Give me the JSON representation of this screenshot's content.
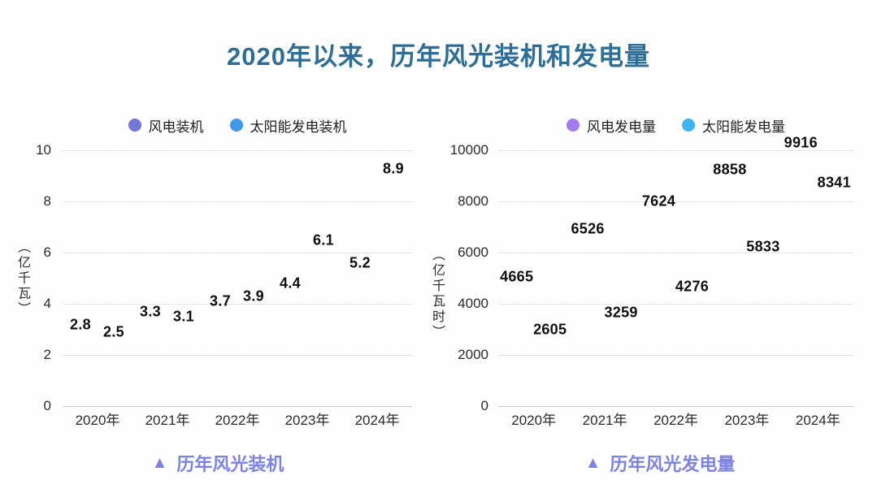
{
  "slide_title": "2020年以来，历年风光装机和发电量",
  "colors": {
    "title": "#2c6e96",
    "caption": "#7c83e2",
    "gridline": "#e4e4e4",
    "baseline": "#c9c9c9",
    "axis_text": "#2b2b2b",
    "data_label": "#0f0f0f"
  },
  "chart_data": [
    {
      "type": "scatter",
      "title": "历年风光装机",
      "caption_glyph": "▲",
      "unit_label": "（亿千瓦）",
      "categories": [
        "2020年",
        "2021年",
        "2022年",
        "2023年",
        "2024年"
      ],
      "series": [
        {
          "name": "风电装机",
          "color": "#7477d6",
          "values": [
            2.8,
            3.3,
            3.7,
            4.4,
            5.2
          ]
        },
        {
          "name": "太阳能发电装机",
          "color": "#4197e9",
          "values": [
            2.5,
            3.1,
            3.9,
            6.1,
            8.9
          ]
        }
      ],
      "y_ticks": [
        "0",
        "2",
        "4",
        "6",
        "8",
        "10"
      ],
      "ylim": [
        0,
        10
      ],
      "grid": true,
      "legend_position": "top",
      "labels_only": true
    },
    {
      "type": "scatter",
      "title": "历年风光发电量",
      "caption_glyph": "▲",
      "unit_label": "（亿千瓦时）",
      "categories": [
        "2020年",
        "2021年",
        "2022年",
        "2023年",
        "2024年"
      ],
      "series": [
        {
          "name": "风电发电量",
          "color": "#a37cef",
          "values": [
            4665,
            6526,
            7624,
            8858,
            9916
          ]
        },
        {
          "name": "太阳能发电量",
          "color": "#3fb3f2",
          "values": [
            2605,
            3259,
            4276,
            5833,
            8341
          ]
        }
      ],
      "y_ticks": [
        "0",
        "2000",
        "4000",
        "6000",
        "8000",
        "10000"
      ],
      "ylim": [
        0,
        10000
      ],
      "grid": true,
      "legend_position": "top",
      "labels_only": true
    }
  ]
}
